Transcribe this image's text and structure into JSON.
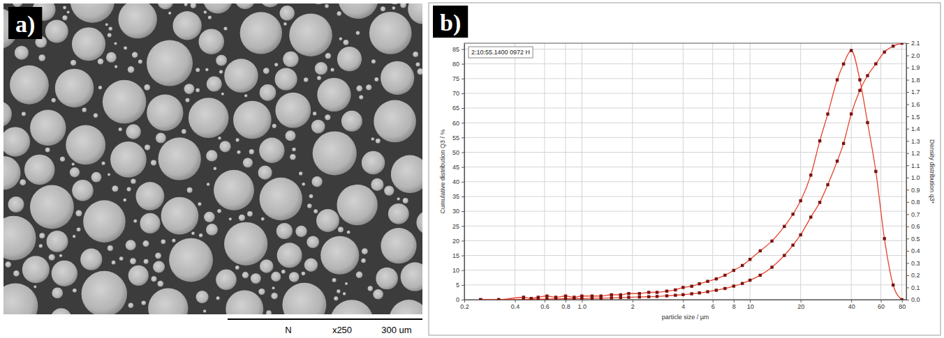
{
  "image_panel": {
    "label": "a)",
    "footer_texts": [
      "N",
      "x250",
      "300 um"
    ]
  },
  "chart_data": {
    "type": "line",
    "title": "b)",
    "annotations": [
      "2:10:55.1400 0972 H"
    ],
    "xlabel": "particle size / µm",
    "ylabel": "Cumulative distribution Q3 / %",
    "y2label": "Density distribution q3*",
    "log": "x",
    "grid": true,
    "marker": "square",
    "xlim": [
      0.2,
      85
    ],
    "xticks": [
      0.2,
      0.4,
      0.6,
      0.8,
      {
        "value": 1,
        "label": "1.0"
      },
      2,
      4,
      6,
      8,
      10,
      20,
      40,
      60,
      80
    ],
    "ylim": [
      0,
      87
    ],
    "yticks": [
      0,
      5,
      10,
      15,
      20,
      25,
      30,
      35,
      40,
      45,
      50,
      55,
      60,
      65,
      70,
      75,
      80,
      85
    ],
    "y2lim": [
      0,
      2.1
    ],
    "y2ticks": [
      {
        "value": 0,
        "label": "0.0"
      },
      0.1,
      0.2,
      0.3,
      0.4,
      0.5,
      0.6,
      0.7,
      0.8,
      0.9,
      {
        "value": 1,
        "label": "1.0"
      },
      1.1,
      1.2,
      1.3,
      1.4,
      1.5,
      1.6,
      1.7,
      1.8,
      1.9,
      {
        "value": 2,
        "label": "2.0"
      },
      2.1
    ],
    "x": [
      0.25,
      0.32,
      0.45,
      0.5,
      0.55,
      0.62,
      0.7,
      0.8,
      0.9,
      1.0,
      1.15,
      1.3,
      1.5,
      1.7,
      1.9,
      2.2,
      2.5,
      2.8,
      3.2,
      3.6,
      4.0,
      4.5,
      5.0,
      5.6,
      6.3,
      7.1,
      8.0,
      9.0,
      10,
      11.5,
      13.5,
      16,
      18,
      20,
      23,
      26,
      29,
      33,
      36,
      40,
      45,
      50,
      56,
      63,
      71,
      80
    ],
    "series": [
      {
        "color": "#e8402c",
        "values": [
          0,
          0,
          0.1,
          0.1,
          0.2,
          0.2,
          0.3,
          0.3,
          0.4,
          0.4,
          0.5,
          0.5,
          0.6,
          0.7,
          0.8,
          0.9,
          1.0,
          1.1,
          1.3,
          1.5,
          1.7,
          2.0,
          2.3,
          2.7,
          3.2,
          3.8,
          4.6,
          5.5,
          6.6,
          8.3,
          11,
          15,
          18.5,
          22,
          28,
          33,
          39,
          47,
          53,
          63,
          71,
          76,
          80,
          84,
          86,
          87
        ]
      },
      {
        "color": "#e8402c",
        "axis": "y2",
        "values": [
          0,
          0,
          0.02,
          0.01,
          0.02,
          0.03,
          0.02,
          0.03,
          0.02,
          0.03,
          0.03,
          0.03,
          0.04,
          0.04,
          0.05,
          0.05,
          0.06,
          0.06,
          0.07,
          0.08,
          0.1,
          0.11,
          0.13,
          0.15,
          0.17,
          0.2,
          0.24,
          0.28,
          0.33,
          0.4,
          0.48,
          0.6,
          0.7,
          0.81,
          1.02,
          1.3,
          1.52,
          1.8,
          1.93,
          2.04,
          1.8,
          1.45,
          1.05,
          0.5,
          0.12,
          0
        ]
      }
    ]
  }
}
